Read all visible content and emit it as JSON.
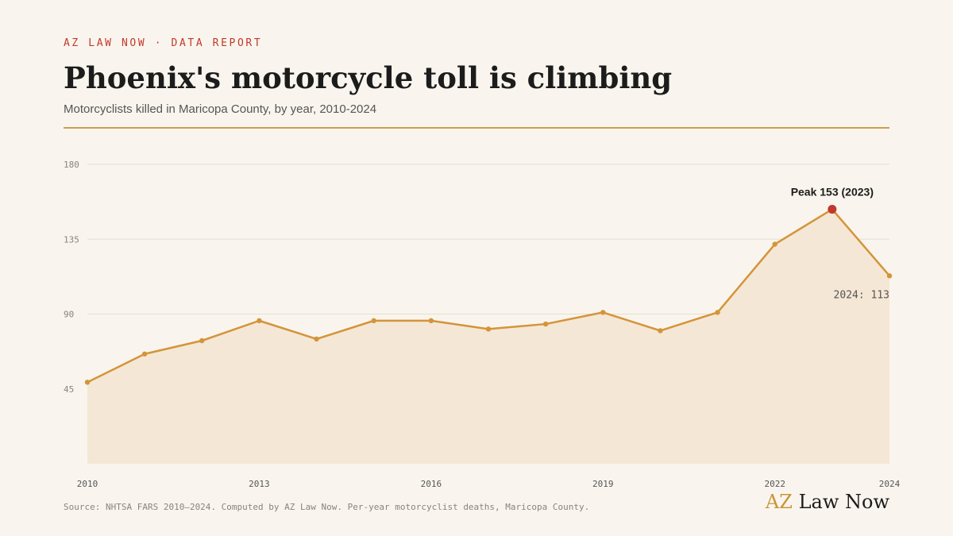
{
  "header": {
    "kicker": "AZ LAW NOW · DATA REPORT",
    "title": "Phoenix's motorcycle toll is climbing",
    "subtitle": "Motorcyclists killed in Maricopa County, by year, 2010-2024"
  },
  "chart_data": {
    "type": "line",
    "x": [
      2010,
      2011,
      2012,
      2013,
      2014,
      2015,
      2016,
      2017,
      2018,
      2019,
      2020,
      2021,
      2022,
      2023,
      2024
    ],
    "values": [
      49,
      66,
      74,
      86,
      75,
      86,
      86,
      81,
      84,
      91,
      80,
      91,
      132,
      153,
      113
    ],
    "color": "#d4943a",
    "area_color": "#f5e7d5",
    "highlight_color": "#c0392b",
    "xlim": [
      2010,
      2024
    ],
    "xticks": [
      2010,
      2013,
      2016,
      2019,
      2022,
      2024
    ],
    "ylim": [
      0,
      180
    ],
    "yticks": [
      45,
      90,
      135,
      180
    ],
    "grid": true,
    "peak_label": "Peak 153 (2023)",
    "last_label": "2024: 113"
  },
  "footer": {
    "source": "Source: NHTSA FARS 2010–2024. Computed by AZ Law Now. Per-year motorcyclist deaths, Maricopa County.",
    "brand_prefix": "AZ",
    "brand_name": "Law Now"
  }
}
